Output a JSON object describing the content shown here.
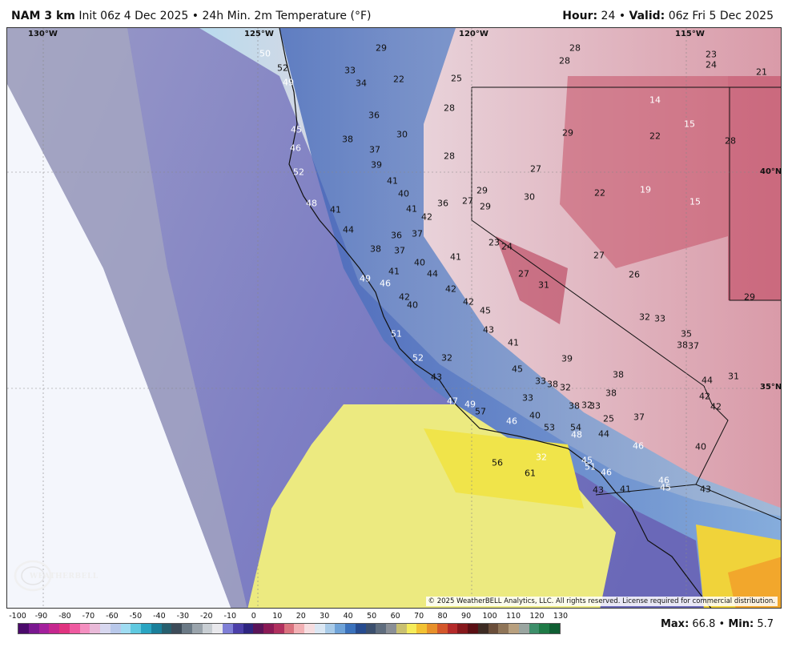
{
  "header": {
    "model": "NAM 3 km",
    "init": "Init 06z 4 Dec 2025",
    "sep": "•",
    "product": "24h Min. 2m Temperature (°F)",
    "hour_label": "Hour:",
    "hour": "24",
    "valid_label": "Valid:",
    "valid": "06z Fri 5 Dec 2025"
  },
  "grid_labels": {
    "lon_130": "130°W",
    "lon_125": "125°W",
    "lon_120": "120°W",
    "lon_115": "115°W",
    "lat_40": "40°N",
    "lat_35": "35°N"
  },
  "stations": [
    {
      "t": "50",
      "c": "w"
    },
    {
      "t": "52",
      "c": "k"
    },
    {
      "t": "49",
      "c": "w"
    },
    {
      "t": "29",
      "c": "k"
    },
    {
      "t": "33",
      "c": "k"
    },
    {
      "t": "34",
      "c": "k"
    },
    {
      "t": "22",
      "c": "k"
    },
    {
      "t": "25",
      "c": "k"
    },
    {
      "t": "28",
      "c": "k"
    },
    {
      "t": "28",
      "c": "k"
    },
    {
      "t": "28",
      "c": "k"
    },
    {
      "t": "23",
      "c": "k"
    },
    {
      "t": "24",
      "c": "k"
    },
    {
      "t": "21",
      "c": "k"
    },
    {
      "t": "14",
      "c": "w"
    },
    {
      "t": "15",
      "c": "w"
    },
    {
      "t": "22",
      "c": "k"
    },
    {
      "t": "28",
      "c": "k"
    },
    {
      "t": "36",
      "c": "k"
    },
    {
      "t": "30",
      "c": "k"
    },
    {
      "t": "29",
      "c": "k"
    },
    {
      "t": "45",
      "c": "w"
    },
    {
      "t": "38",
      "c": "k"
    },
    {
      "t": "37",
      "c": "k"
    },
    {
      "t": "46",
      "c": "w"
    },
    {
      "t": "28",
      "c": "k"
    },
    {
      "t": "52",
      "c": "w"
    },
    {
      "t": "39",
      "c": "k"
    },
    {
      "t": "27",
      "c": "k"
    },
    {
      "t": "41",
      "c": "k"
    },
    {
      "t": "22",
      "c": "k"
    },
    {
      "t": "19",
      "c": "w"
    },
    {
      "t": "15",
      "c": "w"
    },
    {
      "t": "40",
      "c": "k"
    },
    {
      "t": "29",
      "c": "k"
    },
    {
      "t": "30",
      "c": "k"
    },
    {
      "t": "48",
      "c": "w"
    },
    {
      "t": "41",
      "c": "k"
    },
    {
      "t": "41",
      "c": "k"
    },
    {
      "t": "36",
      "c": "k"
    },
    {
      "t": "27",
      "c": "k"
    },
    {
      "t": "29",
      "c": "k"
    },
    {
      "t": "42",
      "c": "k"
    },
    {
      "t": "44",
      "c": "k"
    },
    {
      "t": "36",
      "c": "k"
    },
    {
      "t": "37",
      "c": "k"
    },
    {
      "t": "23",
      "c": "k"
    },
    {
      "t": "24",
      "c": "k"
    },
    {
      "t": "27",
      "c": "k"
    },
    {
      "t": "38",
      "c": "k"
    },
    {
      "t": "37",
      "c": "k"
    },
    {
      "t": "41",
      "c": "k"
    },
    {
      "t": "40",
      "c": "k"
    },
    {
      "t": "26",
      "c": "k"
    },
    {
      "t": "41",
      "c": "k"
    },
    {
      "t": "44",
      "c": "k"
    },
    {
      "t": "27",
      "c": "k"
    },
    {
      "t": "49",
      "c": "w"
    },
    {
      "t": "46",
      "c": "w"
    },
    {
      "t": "31",
      "c": "k"
    },
    {
      "t": "42",
      "c": "k"
    },
    {
      "t": "42",
      "c": "k"
    },
    {
      "t": "40",
      "c": "k"
    },
    {
      "t": "42",
      "c": "k"
    },
    {
      "t": "45",
      "c": "k"
    },
    {
      "t": "29",
      "c": "k"
    },
    {
      "t": "32",
      "c": "k"
    },
    {
      "t": "33",
      "c": "k"
    },
    {
      "t": "51",
      "c": "w"
    },
    {
      "t": "43",
      "c": "k"
    },
    {
      "t": "35",
      "c": "k"
    },
    {
      "t": "41",
      "c": "k"
    },
    {
      "t": "38",
      "c": "k"
    },
    {
      "t": "37",
      "c": "k"
    },
    {
      "t": "52",
      "c": "w"
    },
    {
      "t": "32",
      "c": "k"
    },
    {
      "t": "39",
      "c": "k"
    },
    {
      "t": "45",
      "c": "k"
    },
    {
      "t": "38",
      "c": "k"
    },
    {
      "t": "43",
      "c": "k"
    },
    {
      "t": "33",
      "c": "k"
    },
    {
      "t": "38",
      "c": "k"
    },
    {
      "t": "32",
      "c": "k"
    },
    {
      "t": "44",
      "c": "k"
    },
    {
      "t": "31",
      "c": "k"
    },
    {
      "t": "47",
      "c": "w"
    },
    {
      "t": "49",
      "c": "w"
    },
    {
      "t": "57",
      "c": "k"
    },
    {
      "t": "33",
      "c": "k"
    },
    {
      "t": "38",
      "c": "k"
    },
    {
      "t": "38",
      "c": "k"
    },
    {
      "t": "32",
      "c": "k"
    },
    {
      "t": "33",
      "c": "k"
    },
    {
      "t": "42",
      "c": "k"
    },
    {
      "t": "42",
      "c": "k"
    },
    {
      "t": "46",
      "c": "w"
    },
    {
      "t": "40",
      "c": "k"
    },
    {
      "t": "25",
      "c": "k"
    },
    {
      "t": "37",
      "c": "k"
    },
    {
      "t": "53",
      "c": "k"
    },
    {
      "t": "54",
      "c": "k"
    },
    {
      "t": "48",
      "c": "w"
    },
    {
      "t": "44",
      "c": "k"
    },
    {
      "t": "46",
      "c": "w"
    },
    {
      "t": "40",
      "c": "k"
    },
    {
      "t": "56",
      "c": "k"
    },
    {
      "t": "45",
      "c": "w"
    },
    {
      "t": "51",
      "c": "w"
    },
    {
      "t": "46",
      "c": "w"
    },
    {
      "t": "61",
      "c": "k"
    },
    {
      "t": "32",
      "c": "w"
    },
    {
      "t": "46",
      "c": "w"
    },
    {
      "t": "45",
      "c": "w"
    },
    {
      "t": "43",
      "c": "k"
    },
    {
      "t": "41",
      "c": "k"
    },
    {
      "t": "43",
      "c": "k"
    }
  ],
  "copyright": "© 2025 WeatherBELL Analytics, LLC. All rights reserved. License required for commercial distribution.",
  "logo_text": "WEATHERBELL",
  "legend": {
    "ticks": [
      "-100",
      "-90",
      "-80",
      "-70",
      "-60",
      "-50",
      "-40",
      "-30",
      "-20",
      "-10",
      "0",
      "10",
      "20",
      "30",
      "40",
      "50",
      "60",
      "70",
      "80",
      "90",
      "100",
      "110",
      "120",
      "130"
    ],
    "colors": [
      "#4b0a6b",
      "#7a1890",
      "#a3209c",
      "#c5278e",
      "#e0337f",
      "#ef5aa0",
      "#f48fc0",
      "#e9b9d8",
      "#d7d7ef",
      "#b8c8ea",
      "#9fdcf2",
      "#5fc9e0",
      "#2aa5c2",
      "#1a7f9a",
      "#275f6e",
      "#3d4c59",
      "#6b7a86",
      "#9aa4ac",
      "#c8ced3",
      "#e8e8ec",
      "#7f7fd6",
      "#4b3fa8",
      "#2e2580",
      "#5a1458",
      "#8a1a55",
      "#b0305e",
      "#d9727e",
      "#f2b0b4",
      "#f6dde0",
      "#dbe7f3",
      "#a9cbe8",
      "#6fa3d8",
      "#3b72bc",
      "#264b8f",
      "#3b4f6e",
      "#5f6d7e",
      "#8a8f96",
      "#c9c070",
      "#f5ec5a",
      "#f2c233",
      "#e7902a",
      "#d4572b",
      "#b42a2a",
      "#86181c",
      "#5a0f14",
      "#3d2b23",
      "#6a4e3a",
      "#8f7558",
      "#b8a07f",
      "#9aa5a0",
      "#3d8f6a",
      "#1e7a46",
      "#0f5e33"
    ]
  },
  "maxmin": {
    "max_label": "Max:",
    "max": "66.8",
    "sep": "•",
    "min_label": "Min:",
    "min": "5.7"
  }
}
